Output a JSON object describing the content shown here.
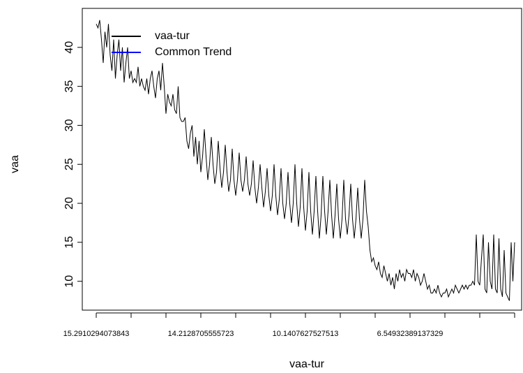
{
  "chart_data": {
    "type": "line",
    "x_label": "vaa-tur",
    "y_label": "vaa",
    "categories": [
      "15.2910294073843",
      null,
      null,
      null,
      null,
      null,
      null,
      null,
      null,
      null,
      null,
      null,
      null,
      null,
      null,
      null,
      null,
      null,
      null,
      null,
      null,
      null,
      null,
      null,
      null,
      null,
      null,
      null,
      null,
      null,
      null,
      null,
      null,
      null,
      null,
      null,
      null,
      null,
      null,
      null,
      null,
      null,
      null,
      null,
      null,
      null,
      null,
      null,
      null,
      null,
      null,
      null,
      null,
      null,
      null,
      null,
      null,
      null,
      null,
      null,
      "14.2128705555723",
      null,
      null,
      null,
      null,
      null,
      null,
      null,
      null,
      null,
      null,
      null,
      null,
      null,
      null,
      null,
      null,
      null,
      null,
      null,
      null,
      null,
      null,
      null,
      null,
      null,
      null,
      null,
      null,
      null,
      null,
      null,
      null,
      null,
      null,
      null,
      null,
      null,
      null,
      null,
      null,
      null,
      null,
      null,
      null,
      null,
      null,
      null,
      null,
      null,
      null,
      null,
      null,
      null,
      null,
      null,
      null,
      null,
      null,
      null,
      "10.1407627527513",
      null,
      null,
      null,
      null,
      null,
      null,
      null,
      null,
      null,
      null,
      null,
      null,
      null,
      null,
      null,
      null,
      null,
      null,
      null,
      null,
      null,
      null,
      null,
      null,
      null,
      null,
      null,
      null,
      null,
      null,
      null,
      null,
      null,
      null,
      null,
      null,
      null,
      null,
      null,
      null,
      null,
      null,
      null,
      null,
      null,
      null,
      null,
      null,
      null,
      null,
      null,
      null,
      null,
      null,
      null,
      null,
      null,
      null,
      null,
      "6.54932389137329",
      null,
      null,
      null,
      null,
      null,
      null,
      null,
      null,
      null,
      null,
      null,
      null,
      null,
      null,
      null,
      null,
      null,
      null,
      null,
      null,
      null,
      null,
      null,
      null,
      null,
      null,
      null,
      null,
      null,
      null,
      null,
      null,
      null,
      null,
      null,
      null,
      null,
      null,
      null,
      null,
      null,
      null,
      null,
      null,
      null,
      null,
      null,
      null,
      null,
      null,
      null,
      null,
      null,
      null,
      null,
      null,
      null,
      null,
      null,
      null
    ],
    "series": [
      {
        "name": "vaa-tur",
        "color": "#000000",
        "values": [
          43,
          42.5,
          43.5,
          41,
          38,
          42,
          40,
          43,
          39,
          37,
          41,
          36,
          39,
          41,
          37,
          40,
          35.5,
          38,
          40,
          36,
          37,
          35.5,
          36,
          35.5,
          37.5,
          35,
          36,
          35,
          34.5,
          36,
          34,
          36,
          37,
          35,
          33.5,
          36,
          37,
          34.5,
          38,
          35,
          31.5,
          34,
          33,
          32.5,
          34,
          32,
          31.5,
          35,
          31,
          30.5,
          30.5,
          31,
          28,
          27,
          29,
          30,
          26,
          28.5,
          25,
          28,
          24,
          26,
          29.5,
          26,
          23,
          25,
          28.5,
          25,
          22.5,
          24,
          28,
          24.5,
          22,
          24,
          27.5,
          24,
          21.5,
          23,
          27,
          23,
          21,
          23,
          26.5,
          23,
          21.5,
          23,
          26,
          22.5,
          21,
          22.5,
          25.5,
          22,
          20,
          22,
          25,
          22,
          19.5,
          21.5,
          24.5,
          21,
          19,
          21,
          25,
          21,
          18.5,
          20.5,
          24.5,
          20,
          18,
          20,
          24,
          20,
          17.5,
          20,
          25,
          20,
          17,
          19.5,
          24.5,
          19.5,
          16.5,
          19,
          24,
          19,
          16,
          19,
          23.5,
          19,
          15.5,
          18.5,
          23.5,
          19,
          16,
          19,
          23,
          18.5,
          15.5,
          18.5,
          22.5,
          18,
          15.5,
          18,
          23,
          18,
          16,
          18.5,
          22.5,
          18,
          15.5,
          18,
          22,
          18,
          15.5,
          18,
          23,
          19,
          17,
          14,
          12.5,
          13,
          12,
          11.5,
          12.5,
          11,
          10.5,
          12,
          11,
          10,
          11,
          9.5,
          10.5,
          9,
          11,
          10,
          11.5,
          10.5,
          11,
          10,
          11.5,
          11,
          11,
          10.5,
          11.5,
          10,
          11,
          10.5,
          9.5,
          10,
          11,
          10,
          9,
          9.5,
          8.5,
          8.5,
          9,
          8.5,
          9.5,
          8.5,
          8,
          8.5,
          8.5,
          9,
          8,
          8.5,
          9,
          8.5,
          9.5,
          9,
          8.5,
          9,
          9.5,
          9,
          9.5,
          9,
          9.5,
          9.5,
          10,
          9.5,
          16,
          10,
          9.5,
          13,
          16,
          9,
          8.5,
          15,
          10,
          9,
          16,
          9,
          8.5,
          15.5,
          9,
          8,
          14,
          8.5,
          8,
          7.5,
          15,
          10,
          15
        ]
      }
    ],
    "legend": [
      {
        "name": "vaa-tur",
        "color": "#000000"
      },
      {
        "name": "Common Trend",
        "color": "#0000ff"
      }
    ],
    "ylim": [
      6.3,
      45
    ],
    "yticks": [
      10,
      15,
      20,
      25,
      30,
      35,
      40
    ]
  }
}
